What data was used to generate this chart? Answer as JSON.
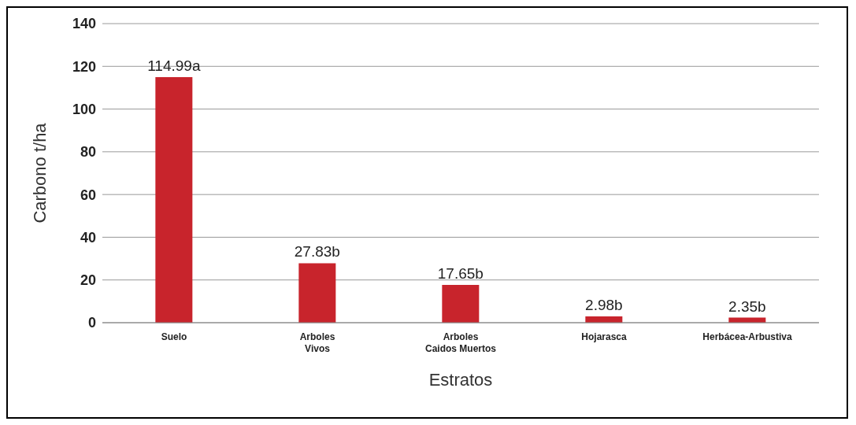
{
  "chart_data": {
    "type": "bar",
    "xlabel": "Estratos",
    "ylabel": "Carbono t/ha",
    "categories": [
      "Suelo",
      "Arboles\nVivos",
      "Arboles\nCaidos Muertos",
      "Hojarasca",
      "Herbácea-Arbustiva"
    ],
    "values": [
      114.99,
      27.83,
      17.65,
      2.98,
      2.35
    ],
    "value_labels": [
      "114.99a",
      "27.83b",
      "17.65b",
      "2.98b",
      "2.35b"
    ],
    "color": "#c8242c",
    "ylim": [
      0,
      140
    ],
    "yticks": [
      0,
      20,
      40,
      60,
      80,
      100,
      120,
      140
    ],
    "grid": "y"
  }
}
